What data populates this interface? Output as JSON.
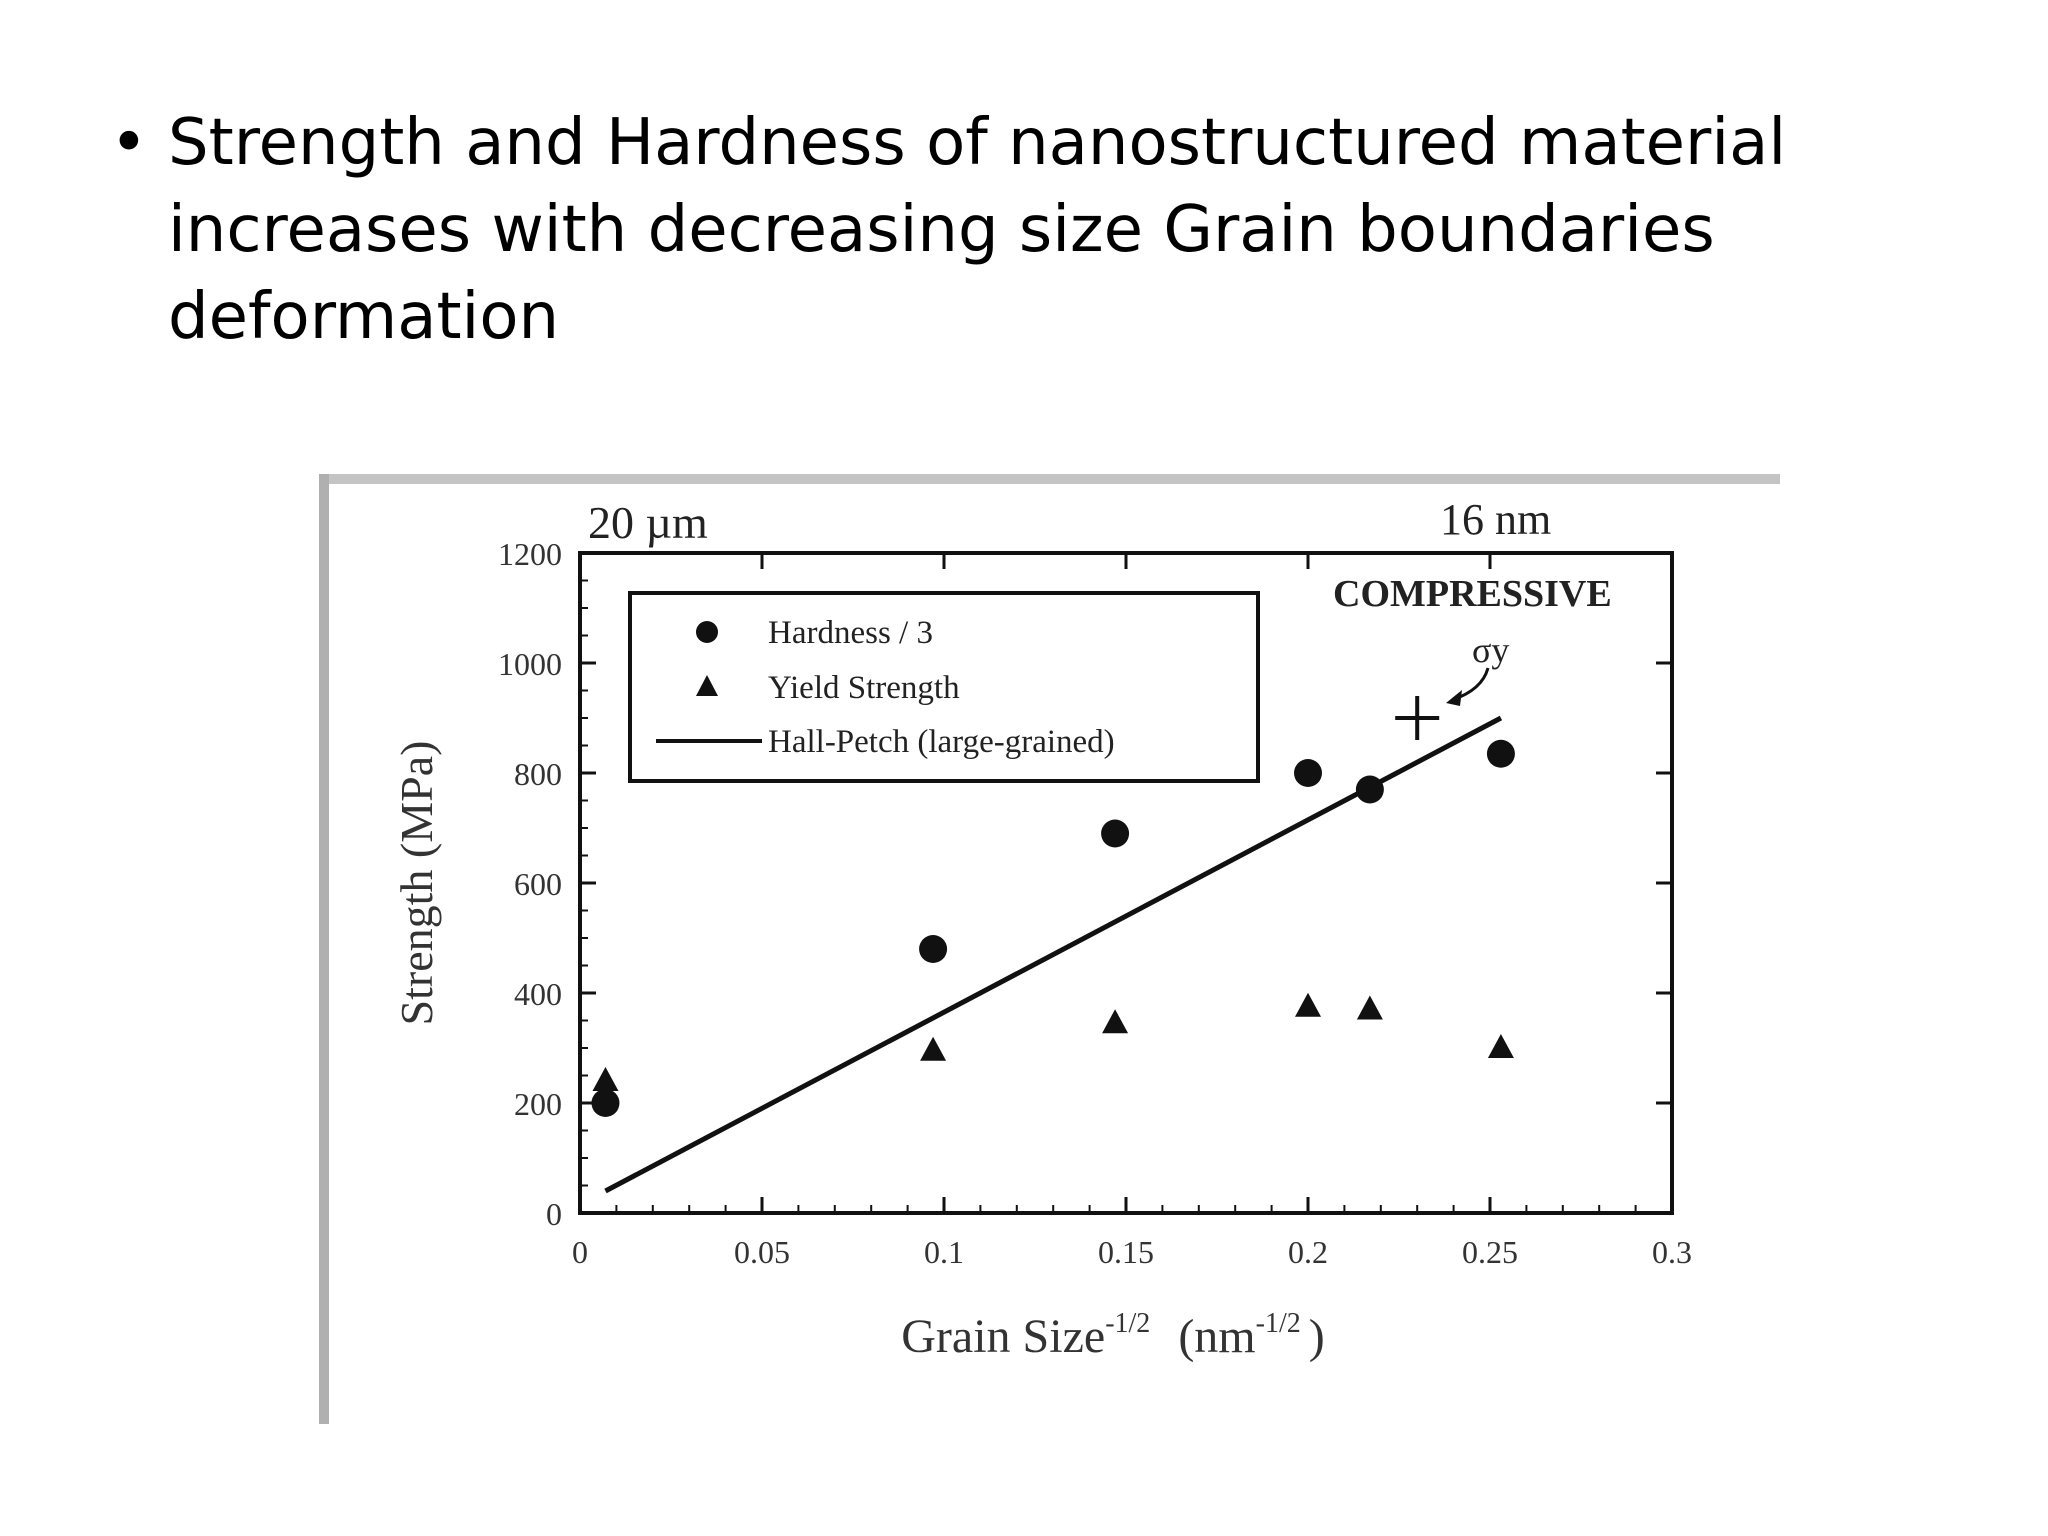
{
  "slide": {
    "bullet": "•",
    "text": "Strength and Hardness of nanostructured material increases with decreasing size Grain boundaries deformation"
  },
  "chart_data": {
    "type": "scatter",
    "xlabel_main": "Grain Size",
    "xlabel_sup": "-1/2",
    "xlabel_unit_open": "(nm",
    "xlabel_unit_sup": "-1/2",
    "xlabel_unit_close": ")",
    "ylabel": "Strength (MPa)",
    "xlim": [
      0,
      0.3
    ],
    "ylim": [
      0,
      1200
    ],
    "x_ticks": [
      "0",
      "0.05",
      "0.1",
      "0.15",
      "0.2",
      "0.25",
      "0.3"
    ],
    "x_tick_values": [
      0,
      0.05,
      0.1,
      0.15,
      0.2,
      0.25,
      0.3
    ],
    "y_ticks": [
      "0",
      "200",
      "400",
      "600",
      "800",
      "1000",
      "1200"
    ],
    "y_tick_values": [
      0,
      200,
      400,
      600,
      800,
      1000,
      1200
    ],
    "top_labels": {
      "left": "20 µm",
      "right": "16 nm"
    },
    "annotation": "COMPRESSIVE",
    "sigma_label": "σy",
    "legend": {
      "placement": "top-left",
      "items": [
        "Hardness / 3",
        "Yield Strength",
        "Hall-Petch (large-grained)"
      ]
    },
    "series": [
      {
        "name": "Hardness / 3",
        "marker": "circle",
        "points": [
          [
            0.007,
            200
          ],
          [
            0.097,
            480
          ],
          [
            0.147,
            690
          ],
          [
            0.2,
            800
          ],
          [
            0.217,
            770
          ],
          [
            0.253,
            835
          ]
        ]
      },
      {
        "name": "Yield Strength",
        "marker": "triangle",
        "points": [
          [
            0.007,
            240
          ],
          [
            0.097,
            295
          ],
          [
            0.147,
            345
          ],
          [
            0.2,
            375
          ],
          [
            0.217,
            370
          ],
          [
            0.253,
            300
          ]
        ]
      },
      {
        "name": "Hall-Petch (large-grained)",
        "marker": "line",
        "points": [
          [
            0.007,
            40
          ],
          [
            0.253,
            900
          ]
        ]
      }
    ],
    "sigma_y_point": [
      0.23,
      900
    ],
    "colors": {
      "ink": "#111111",
      "frame_shadow": "#bbbbbb"
    }
  }
}
